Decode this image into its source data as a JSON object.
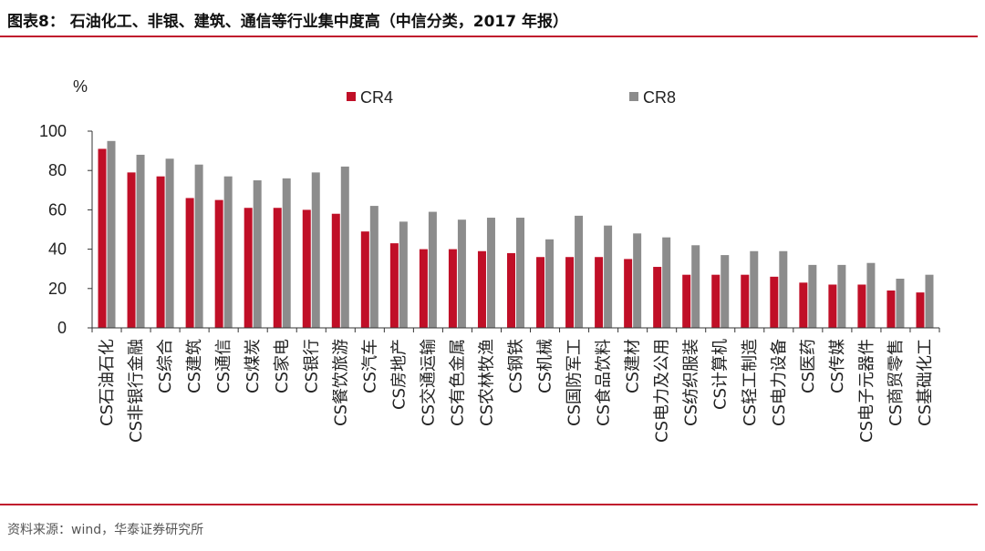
{
  "header": {
    "title": "图表8：  石油化工、非银、建筑、通信等行业集中度高（中信分类，2017 年报）"
  },
  "footer": {
    "source": "资料来源：wind，华泰证券研究所"
  },
  "colors": {
    "accent": "#c0182d",
    "cr4": "#c00f27",
    "cr8": "#8c8c8c"
  },
  "chart_data": {
    "type": "bar",
    "unit_label": "%",
    "ylim": [
      0,
      100
    ],
    "yticks": [
      0,
      20,
      40,
      60,
      80,
      100
    ],
    "legend_position": "top",
    "categories": [
      "CS石油石化",
      "CS非银行金融",
      "CS综合",
      "CS建筑",
      "CS通信",
      "CS煤炭",
      "CS家电",
      "CS银行",
      "CS餐饮旅游",
      "CS汽车",
      "CS房地产",
      "CS交通运输",
      "CS有色金属",
      "CS农林牧渔",
      "CS钢铁",
      "CS机械",
      "CS国防军工",
      "CS食品饮料",
      "CS建材",
      "CS电力及公用",
      "CS纺织服装",
      "CS计算机",
      "CS轻工制造",
      "CS电力设备",
      "CS医药",
      "CS传媒",
      "CS电子元器件",
      "CS商贸零售",
      "CS基础化工"
    ],
    "series": [
      {
        "name": "CR4",
        "values": [
          91,
          79,
          77,
          66,
          65,
          61,
          61,
          60,
          58,
          49,
          43,
          40,
          40,
          39,
          38,
          36,
          36,
          36,
          35,
          31,
          27,
          27,
          27,
          26,
          23,
          22,
          22,
          19,
          18
        ]
      },
      {
        "name": "CR8",
        "values": [
          95,
          88,
          86,
          83,
          77,
          75,
          76,
          79,
          82,
          62,
          54,
          59,
          55,
          56,
          56,
          45,
          57,
          52,
          48,
          46,
          42,
          37,
          39,
          39,
          32,
          32,
          33,
          25,
          27
        ]
      }
    ]
  }
}
